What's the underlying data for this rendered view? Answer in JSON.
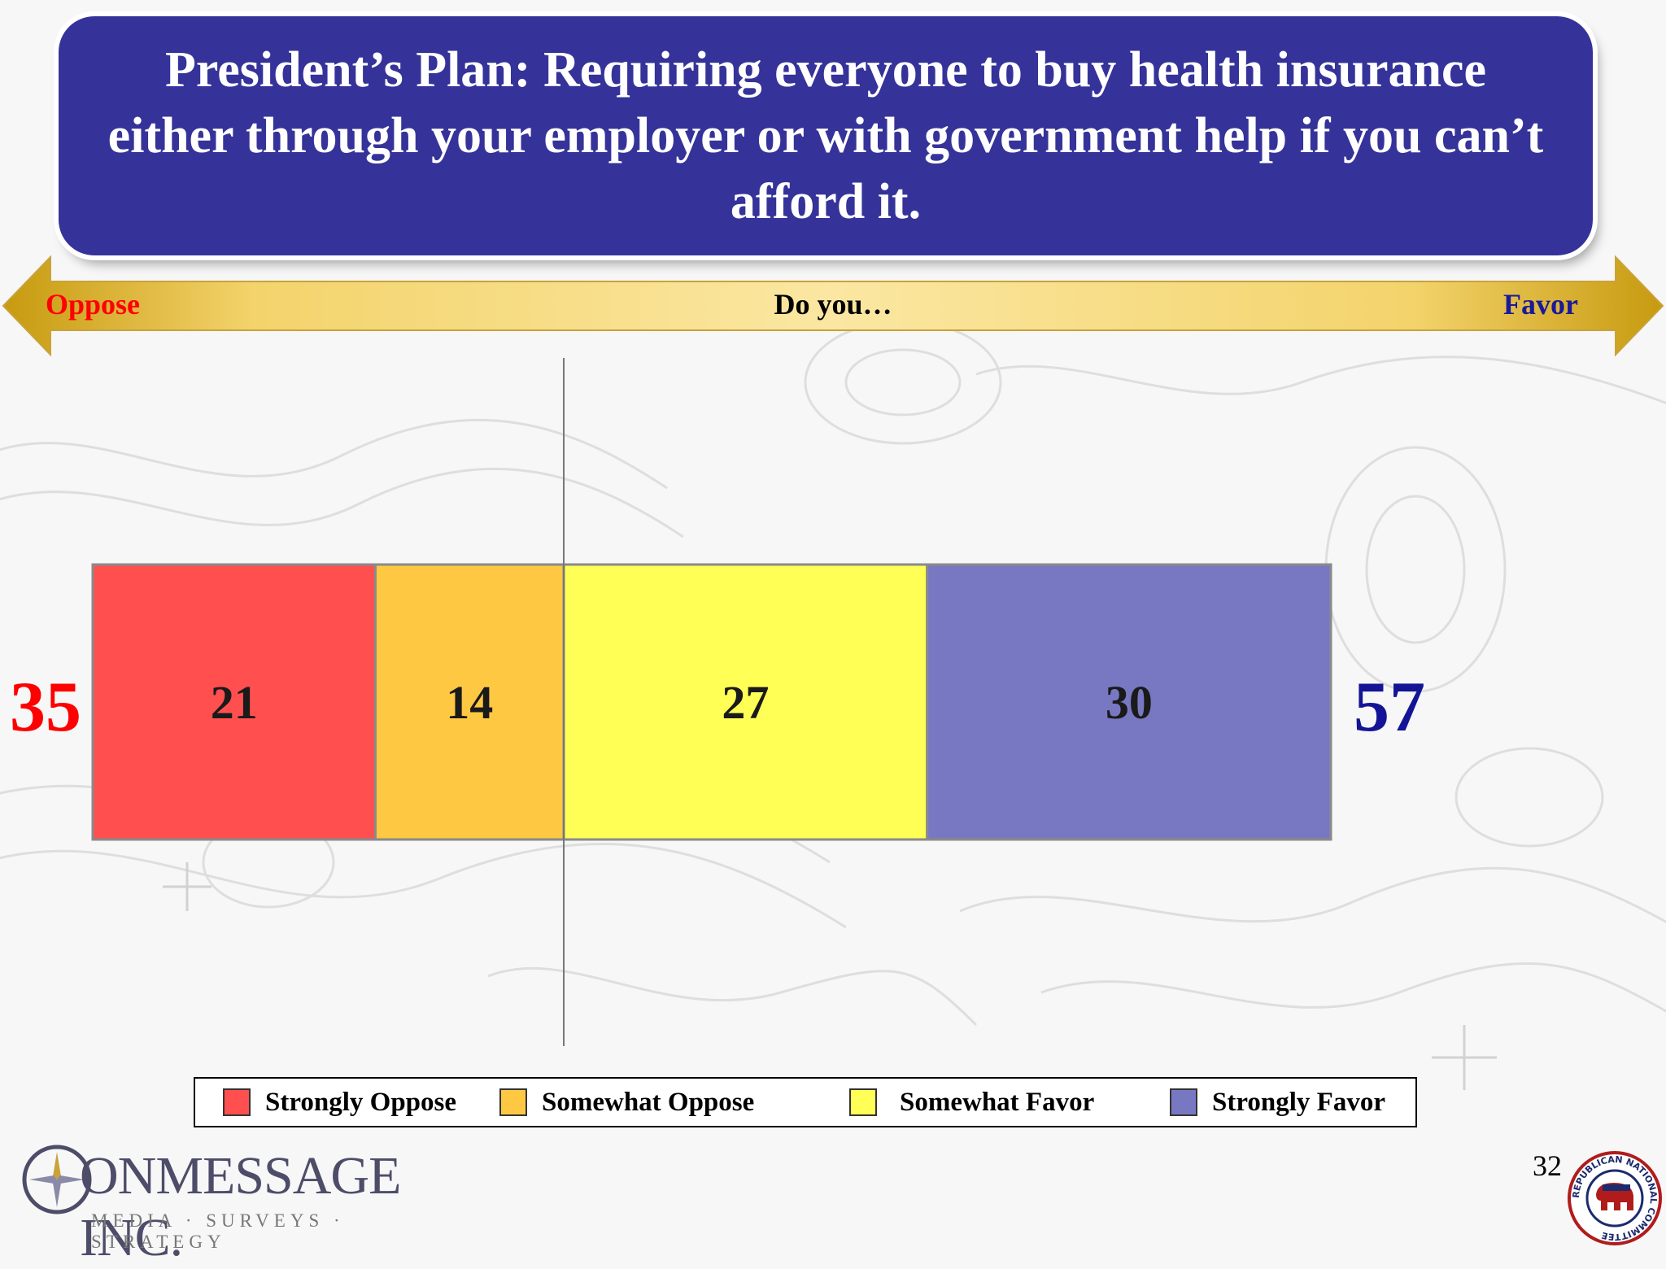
{
  "title": "President’s Plan: Requiring everyone to buy health insurance either through your employer or with government help if you can’t afford it.",
  "arrow": {
    "left_label": "Oppose",
    "center_label": "Do you…",
    "right_label": "Favor",
    "color": "#f2c12e"
  },
  "totals": {
    "oppose": "35",
    "favor": "57",
    "oppose_color": "#ff0000",
    "favor_color": "#141496"
  },
  "chart_data": {
    "type": "bar",
    "orientation": "horizontal",
    "stacked": true,
    "title": "",
    "xlabel": "",
    "ylabel": "",
    "grid": false,
    "legend_position": "bottom",
    "divider_after_series": 1,
    "series": [
      {
        "name": "Strongly Oppose",
        "value": 21,
        "color": "#ff4f4f"
      },
      {
        "name": "Somewhat Oppose",
        "value": 14,
        "color": "#ffc842"
      },
      {
        "name": "Somewhat Favor",
        "value": 27,
        "color": "#ffff55"
      },
      {
        "name": "Strongly Favor",
        "value": 30,
        "color": "#7878c2"
      }
    ]
  },
  "footer": {
    "logo_name": "ONMESSAGE INC.",
    "logo_tagline": "MEDIA · SURVEYS · STRATEGY",
    "page_number": "32",
    "seal_text": "REPUBLICAN NATIONAL COMMITTEE",
    "seal_icon": "elephant-seal-icon"
  }
}
